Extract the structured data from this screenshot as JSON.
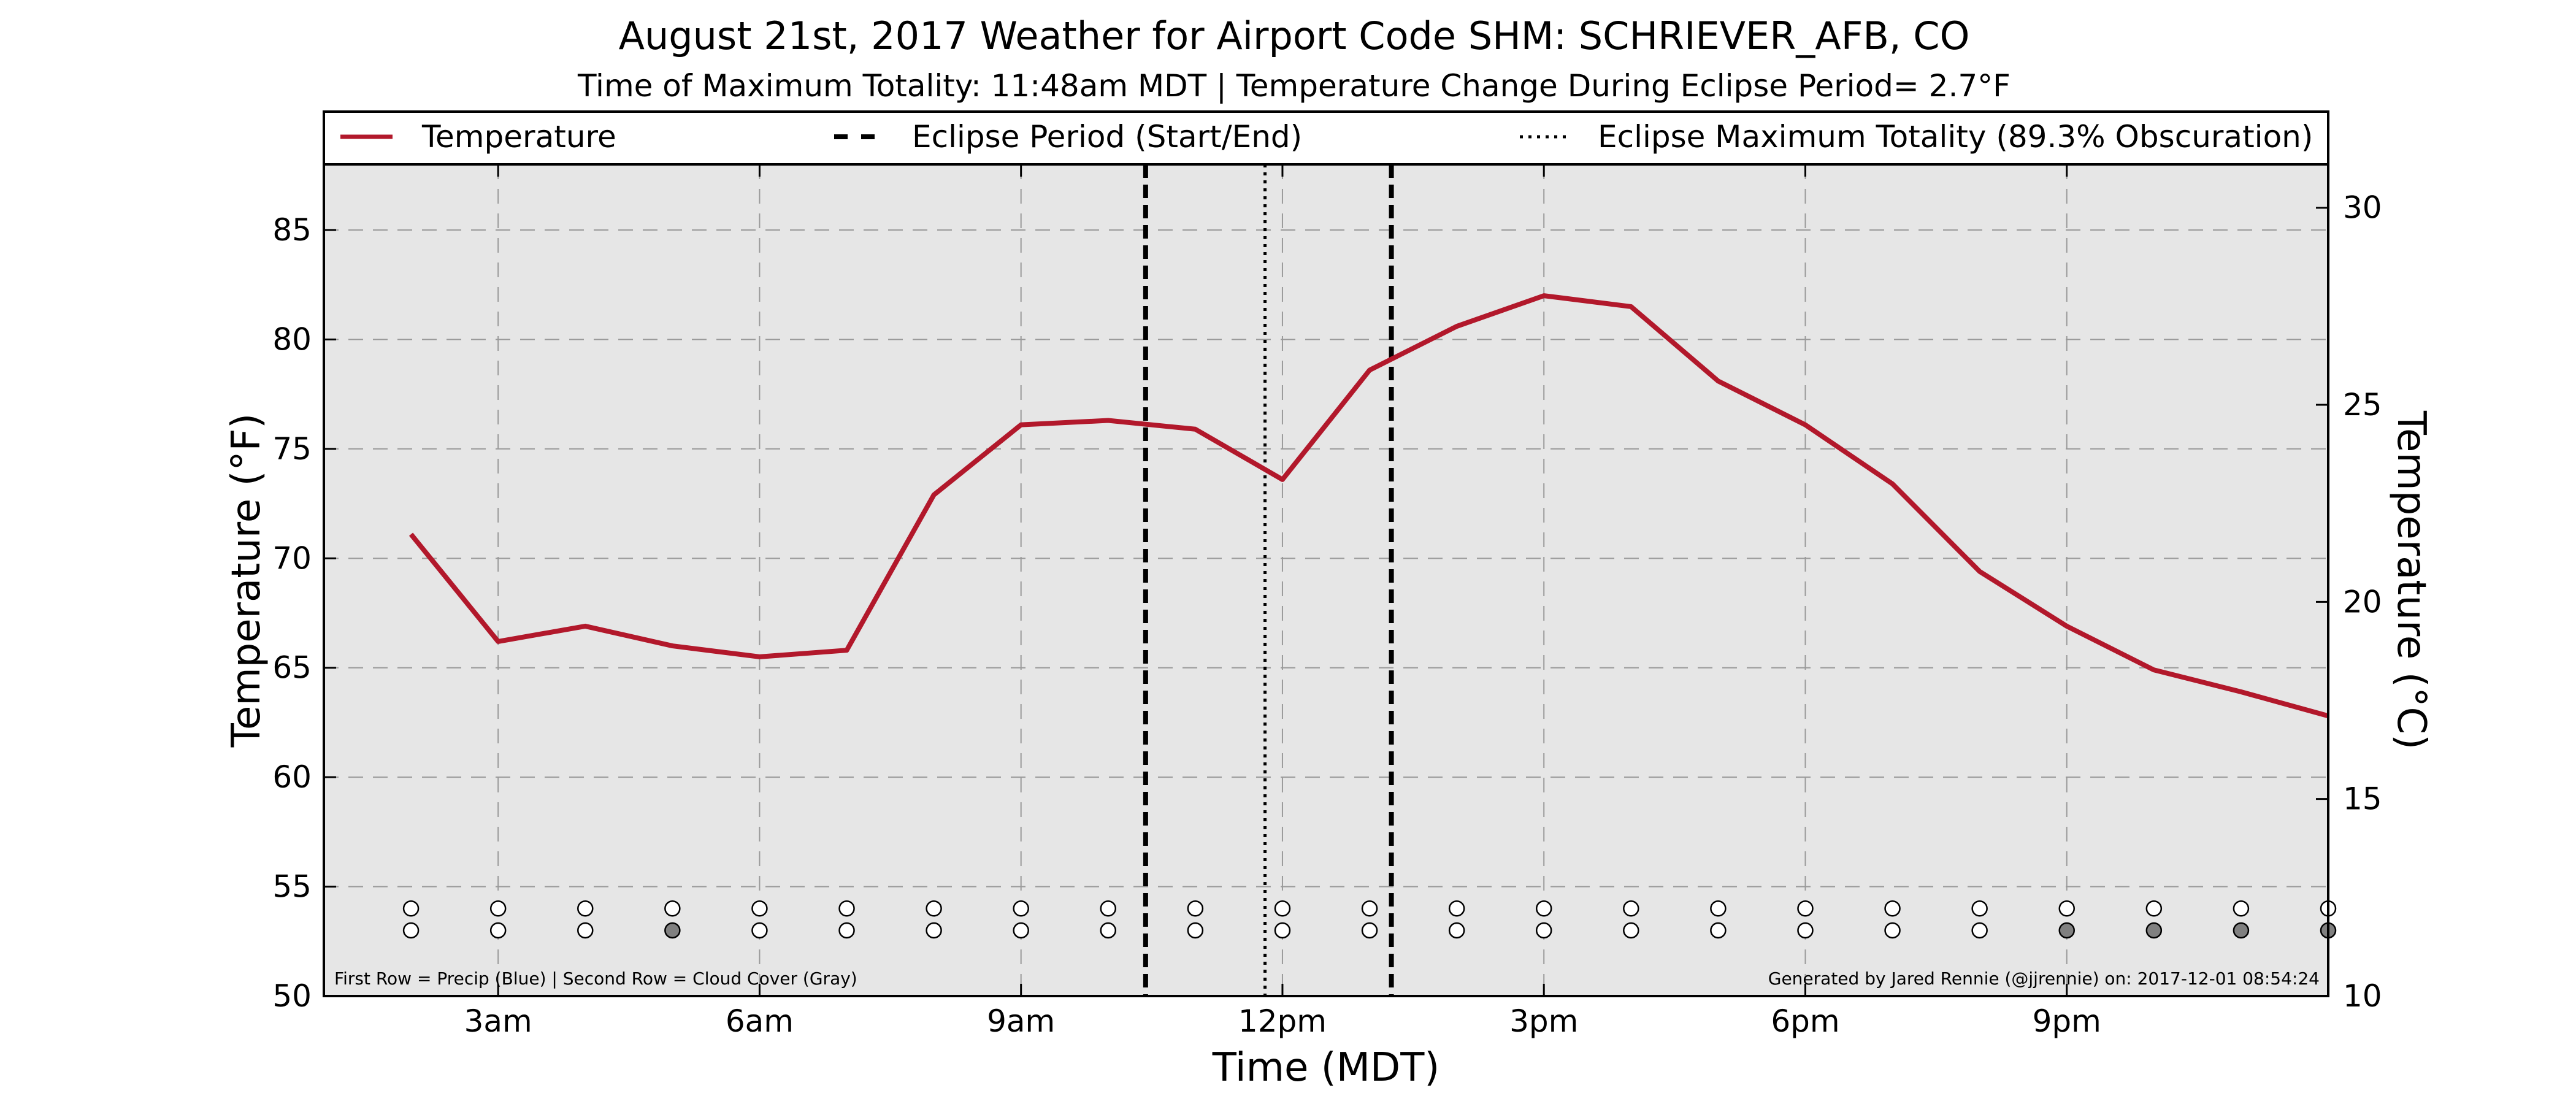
{
  "title": "August 21st, 2017 Weather for Airport Code SHM: SCHRIEVER_AFB, CO",
  "subtitle": "Time of Maximum Totality: 11:48am MDT | Temperature Change During Eclipse Period= 2.7°F",
  "legend": {
    "temperature": "Temperature",
    "eclipse_period": "Eclipse Period (Start/End)",
    "eclipse_max": "Eclipse Maximum Totality (89.3% Obscuration)"
  },
  "footnote_left": "First Row = Precip (Blue) | Second Row = Cloud Cover (Gray)",
  "footnote_right": "Generated by Jared Rennie (@jjrennie) on: 2017-12-01 08:54:24",
  "colors": {
    "temperature_line": "#b2182b",
    "plot_background": "#e6e6e6",
    "eclipse_lines": "#000000",
    "marker_empty": "#ffffff",
    "marker_gray": "#808080"
  },
  "chart_data": {
    "type": "line",
    "xlabel": "Time (MDT)",
    "ylabel": "Temperature (°F)",
    "ylabel_right": "Temperature (°C)",
    "xlim": [
      1,
      24
    ],
    "ylim": [
      50,
      88
    ],
    "ylim_right": [
      10,
      31.1
    ],
    "grid": true,
    "legend_placement": "top, above plot",
    "x_ticks": [
      3,
      6,
      9,
      12,
      15,
      18,
      21
    ],
    "x_tick_labels": [
      "3am",
      "6am",
      "9am",
      "12pm",
      "3pm",
      "6pm",
      "9pm"
    ],
    "y_ticks": [
      50,
      55,
      60,
      65,
      70,
      75,
      80,
      85
    ],
    "y_ticks_right": [
      10,
      15,
      20,
      25,
      30
    ],
    "series": [
      {
        "name": "Temperature",
        "x": [
          2,
          3,
          4,
          5,
          6,
          7,
          8,
          9,
          10,
          11,
          12,
          13,
          14,
          15,
          16,
          17,
          18,
          19,
          20,
          21,
          22,
          23,
          24
        ],
        "values": [
          71.1,
          66.2,
          66.9,
          66.0,
          65.5,
          65.8,
          72.9,
          76.1,
          76.3,
          75.9,
          73.6,
          78.6,
          80.6,
          82.0,
          81.5,
          78.1,
          76.1,
          73.4,
          69.4,
          66.9,
          64.9,
          63.9,
          62.8
        ]
      }
    ],
    "eclipse_start": 10.43,
    "eclipse_max": 11.8,
    "eclipse_end": 13.25,
    "precip_row": {
      "x": [
        2,
        3,
        4,
        5,
        6,
        7,
        8,
        9,
        10,
        11,
        12,
        13,
        14,
        15,
        16,
        17,
        18,
        19,
        20,
        21,
        22,
        23,
        24
      ],
      "filled": [
        false,
        false,
        false,
        false,
        false,
        false,
        false,
        false,
        false,
        false,
        false,
        false,
        false,
        false,
        false,
        false,
        false,
        false,
        false,
        false,
        false,
        false,
        false
      ]
    },
    "cloud_row": {
      "x": [
        2,
        3,
        4,
        5,
        6,
        7,
        8,
        9,
        10,
        11,
        12,
        13,
        14,
        15,
        16,
        17,
        18,
        19,
        20,
        21,
        22,
        23,
        24
      ],
      "filled": [
        false,
        false,
        false,
        true,
        false,
        false,
        false,
        false,
        false,
        false,
        false,
        false,
        false,
        false,
        false,
        false,
        false,
        false,
        false,
        true,
        true,
        true,
        true
      ]
    }
  }
}
